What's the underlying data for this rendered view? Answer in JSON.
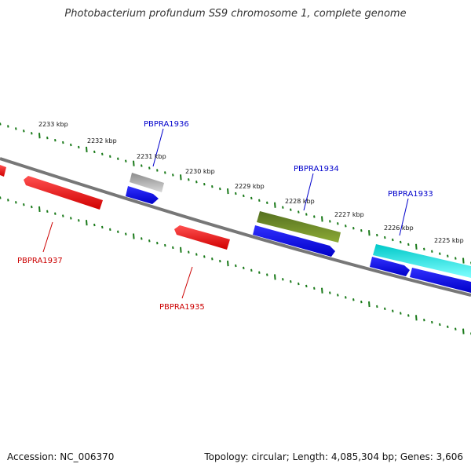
{
  "title": "Photobacterium profundum SS9 chromosome 1, complete genome",
  "footer": {
    "accession": "Accession: NC_006370",
    "summary": "Topology: circular; Length: 4,085,304 bp; Genes: 3,606"
  },
  "ruler": {
    "color": "#1a7a1a",
    "tick_labels": [
      "2233 kbp",
      "2232 kbp",
      "2231 kbp",
      "2230 kbp",
      "2229 kbp",
      "2228 kbp",
      "2227 kbp",
      "2226 kbp",
      "2225 kbp"
    ]
  },
  "gene_labels": {
    "forward": [
      "PBPRA1936",
      "PBPRA1934",
      "PBPRA1933"
    ],
    "reverse": [
      "PBPRA1937",
      "PBPRA1935"
    ]
  },
  "colors": {
    "forward_label": "#0000cc",
    "reverse_label": "#cc0000",
    "backbone": "#777777",
    "red_gene": "#ee0000",
    "blue_gene": "#0000ee",
    "gray_gene": "#b8b8b8",
    "olive_gene": "#6b8e23",
    "cyan_gene": "#22e0e0"
  }
}
